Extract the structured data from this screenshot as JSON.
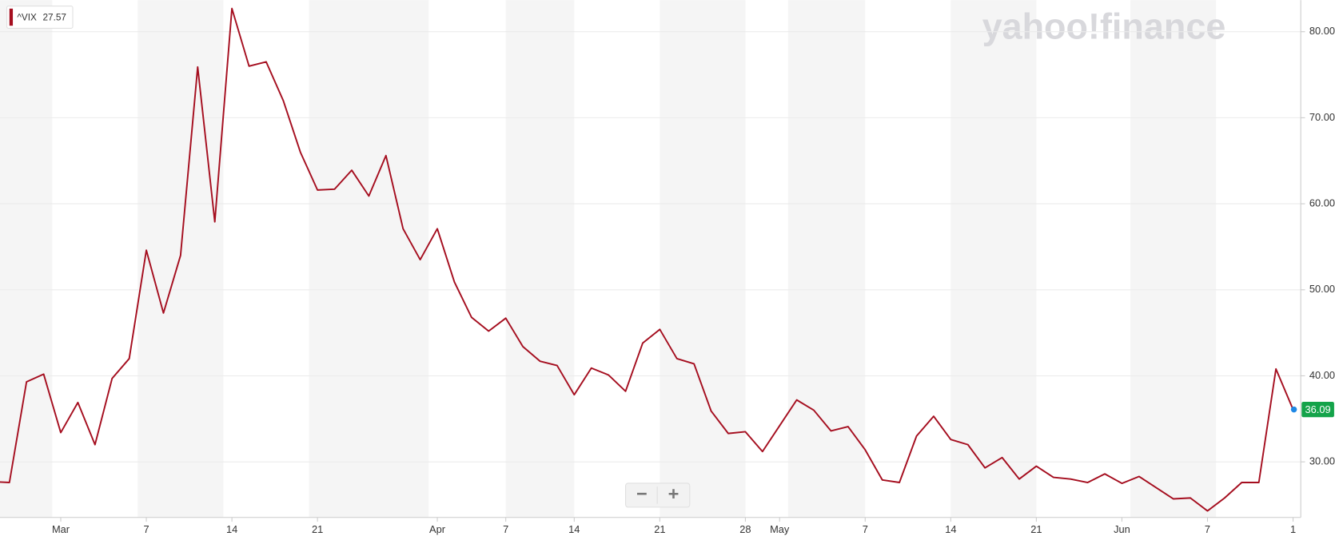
{
  "chart_data": {
    "type": "line",
    "watermark": "yahoo!finance",
    "categories": [
      null,
      null,
      null,
      null,
      "Mar",
      null,
      null,
      null,
      null,
      "7",
      null,
      null,
      null,
      null,
      "14",
      null,
      null,
      null,
      null,
      "21",
      null,
      null,
      null,
      null,
      null,
      null,
      "Apr",
      null,
      null,
      null,
      "7",
      null,
      null,
      null,
      "14",
      null,
      null,
      null,
      null,
      "21",
      null,
      null,
      null,
      null,
      "28",
      null,
      "May",
      null,
      null,
      null,
      null,
      "7",
      null,
      null,
      null,
      null,
      "14",
      null,
      null,
      null,
      null,
      "21",
      null,
      null,
      null,
      null,
      "Jun",
      null,
      null,
      null,
      null,
      "7",
      null,
      null,
      null,
      null,
      "1"
    ],
    "series": [
      {
        "name": "^VIX",
        "legend_value": "27.57",
        "color": "#a50e1f",
        "values": [
          27.7,
          27.6,
          39.3,
          40.2,
          33.4,
          36.9,
          32.0,
          39.7,
          42.0,
          54.6,
          47.3,
          54.0,
          75.9,
          57.9,
          82.7,
          76.0,
          76.5,
          72.0,
          66.0,
          61.6,
          61.7,
          63.9,
          60.9,
          65.6,
          57.1,
          53.5,
          57.1,
          50.9,
          46.8,
          45.2,
          46.7,
          43.4,
          41.7,
          41.2,
          37.8,
          40.9,
          40.1,
          38.2,
          43.8,
          45.4,
          42.0,
          41.4,
          35.9,
          33.3,
          33.5,
          31.2,
          34.2,
          37.2,
          36.0,
          33.6,
          34.1,
          31.4,
          27.9,
          27.6,
          33.0,
          35.3,
          32.6,
          32.0,
          29.3,
          30.5,
          28.0,
          29.5,
          28.2,
          28.0,
          27.6,
          28.6,
          27.5,
          28.3,
          27.0,
          25.7,
          25.8,
          24.3,
          25.8,
          27.6,
          27.6,
          40.8,
          36.09
        ]
      }
    ],
    "current_value_label": "36.09",
    "ylim": [
      23.54,
      83.68
    ],
    "yticks": [
      {
        "value": 30,
        "label": "30.00"
      },
      {
        "value": 40,
        "label": "40.00"
      },
      {
        "value": 50,
        "label": "50.00"
      },
      {
        "value": 60,
        "label": "60.00"
      },
      {
        "value": 70,
        "label": "70.00"
      },
      {
        "value": 80,
        "label": "80.00"
      }
    ],
    "grid": true,
    "controls": [
      "−",
      "+"
    ]
  }
}
